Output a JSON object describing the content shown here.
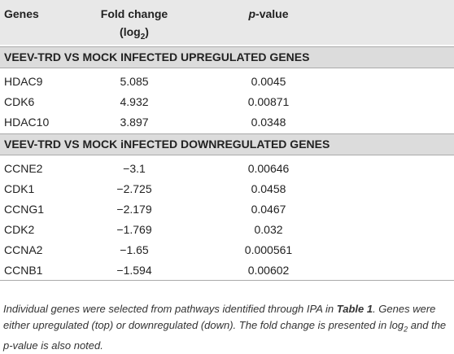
{
  "header": {
    "genes": "Genes",
    "fold_change": "Fold change",
    "fold_change_unit": {
      "pre": "(log",
      "sub": "2",
      "post": ")"
    },
    "p_value": {
      "italic": "p",
      "rest": "-value"
    }
  },
  "sections": [
    {
      "title": "VEEV-TRD VS MOCK INFECTED UPREGULATED GENES",
      "rows": [
        [
          "HDAC9",
          "5.085",
          "0.0045"
        ],
        [
          "CDK6",
          "4.932",
          "0.00871"
        ],
        [
          "HDAC10",
          "3.897",
          "0.0348"
        ]
      ]
    },
    {
      "title": "VEEV-TRD VS MOCK iNFECTED DOWNREGULATED GENES",
      "rows": [
        [
          "CCNE2",
          "−3.1",
          "0.00646"
        ],
        [
          "CDK1",
          "−2.725",
          "0.0458"
        ],
        [
          "CCNG1",
          "−2.179",
          "0.0467"
        ],
        [
          "CDK2",
          "−1.769",
          "0.032"
        ],
        [
          "CCNA2",
          "−1.65",
          "0.000561"
        ],
        [
          "CCNB1",
          "−1.594",
          "0.00602"
        ]
      ]
    }
  ],
  "footnote": {
    "part1": "Individual genes were selected from pathways identified through IPA in ",
    "bold": "Table 1",
    "part2": ". Genes were either upregulated (top) or downregulated (down). The fold change is presented in ",
    "log": "log",
    "sub": "2",
    "part3": " and the p-value is also noted."
  }
}
